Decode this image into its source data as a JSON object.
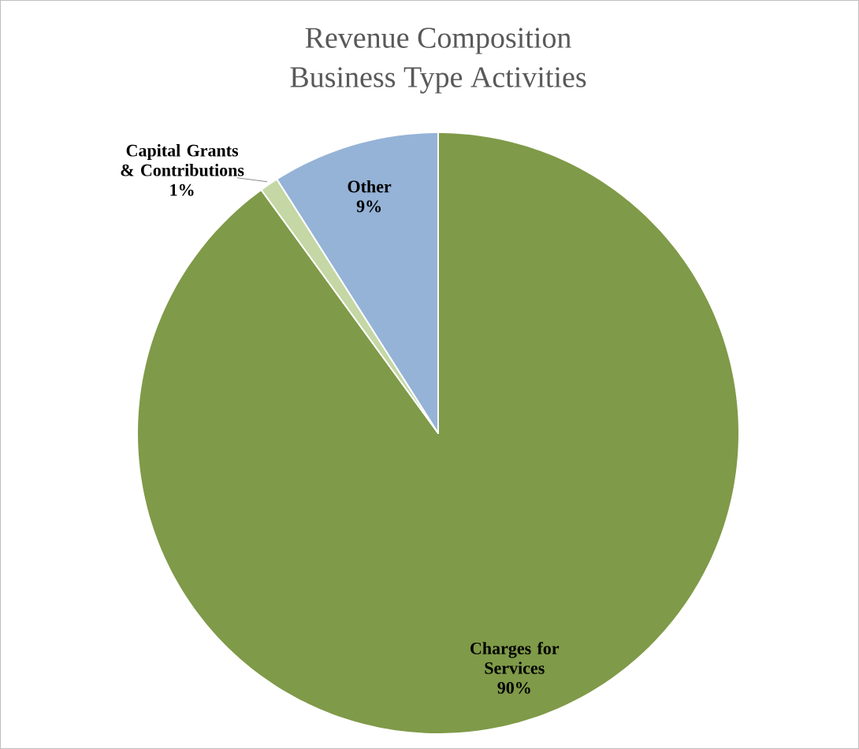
{
  "chart_data": {
    "type": "pie",
    "title": "Revenue Composition",
    "subtitle": "Business Type Activities",
    "categories": [
      "Charges for Services",
      "Capital Grants & Contributions",
      "Other"
    ],
    "values": [
      90,
      1,
      9
    ],
    "value_labels": [
      "90%",
      "1%",
      "9%"
    ],
    "colors": [
      "#7f9a48",
      "#c4d7a4",
      "#95b3d7"
    ]
  }
}
